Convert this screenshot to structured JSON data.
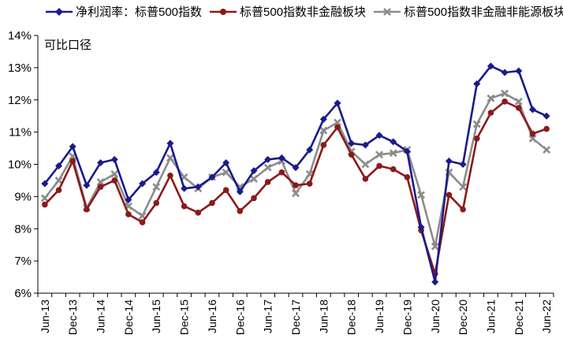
{
  "chart_data": {
    "type": "line",
    "subtitle": "可比口径",
    "ylim": [
      6,
      14
    ],
    "yticks": [
      "6%",
      "7%",
      "8%",
      "9%",
      "10%",
      "11%",
      "12%",
      "13%",
      "14%"
    ],
    "xtick_labels": [
      "Jun-13",
      "Dec-13",
      "Jun-14",
      "Dec-14",
      "Jun-15",
      "Dec-15",
      "Jun-16",
      "Dec-16",
      "Jun-17",
      "Dec-17",
      "Jun-18",
      "Dec-18",
      "Jun-19",
      "Dec-19",
      "Jun-20",
      "Dec-20",
      "Jun-21",
      "Dec-21",
      "Jun-22"
    ],
    "grid": false,
    "legend_position": "top",
    "series": [
      {
        "name": "净利润率：标普500指数",
        "color": "#1a1a8c",
        "marker": "diamond",
        "values": [
          9.4,
          9.95,
          10.55,
          9.35,
          10.05,
          10.15,
          8.9,
          9.4,
          9.75,
          10.65,
          9.25,
          9.3,
          9.6,
          10.05,
          9.15,
          9.8,
          10.15,
          10.2,
          9.9,
          10.45,
          11.4,
          11.9,
          10.65,
          10.6,
          10.9,
          10.7,
          10.4,
          8.05,
          6.35,
          10.1,
          10.0,
          12.5,
          13.05,
          12.85,
          12.9,
          11.7,
          11.5
        ]
      },
      {
        "name": "标普500指数非金融板块",
        "color": "#8b1a1a",
        "marker": "circle",
        "values": [
          8.75,
          9.2,
          10.1,
          8.6,
          9.3,
          9.5,
          8.45,
          8.2,
          8.8,
          9.65,
          8.7,
          8.5,
          8.8,
          9.2,
          8.55,
          8.95,
          9.45,
          9.75,
          9.35,
          9.4,
          10.6,
          11.15,
          10.3,
          9.55,
          9.95,
          9.85,
          9.6,
          7.95,
          6.6,
          9.05,
          8.6,
          10.8,
          11.6,
          11.95,
          11.75,
          10.95,
          11.1
        ]
      },
      {
        "name": "标普500指数非金融非能源板块",
        "color": "#8c8c8c",
        "marker": "x",
        "values": [
          8.95,
          9.5,
          10.25,
          8.65,
          9.45,
          9.7,
          8.7,
          8.4,
          9.3,
          10.2,
          9.6,
          9.25,
          9.6,
          9.75,
          9.3,
          9.55,
          9.9,
          10.1,
          9.1,
          9.7,
          11.05,
          11.3,
          10.4,
          10.0,
          10.3,
          10.35,
          10.45,
          9.05,
          7.45,
          9.75,
          9.3,
          11.25,
          12.05,
          12.2,
          11.95,
          10.8,
          10.45
        ]
      }
    ]
  }
}
